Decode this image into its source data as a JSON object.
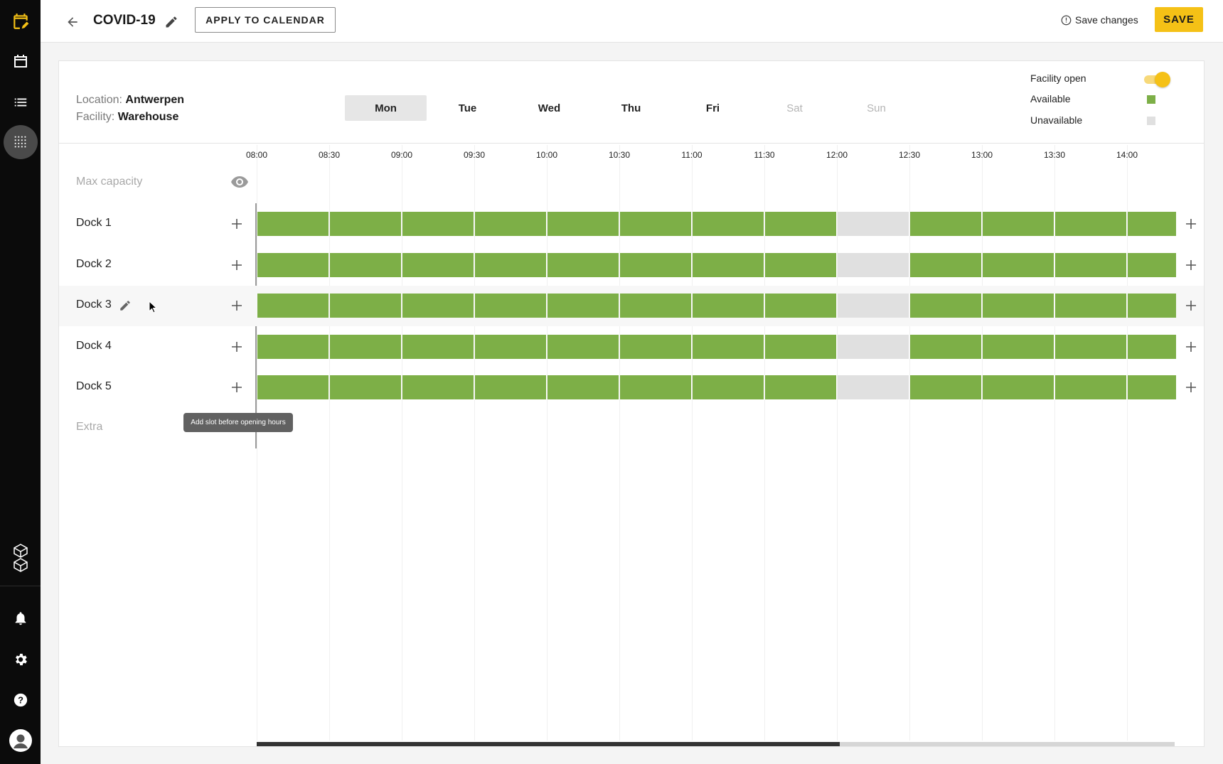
{
  "sidebar": {
    "items": [
      {
        "icon": "calendar-edit-icon",
        "color": "#f5c116"
      },
      {
        "icon": "calendar-icon"
      },
      {
        "icon": "list-icon"
      },
      {
        "icon": "grid-icon",
        "active": true
      },
      {
        "icon": "cube-stack-icon"
      },
      {
        "icon": "bell-icon"
      },
      {
        "icon": "gear-icon"
      },
      {
        "icon": "help-icon"
      },
      {
        "icon": "user-avatar-icon"
      }
    ]
  },
  "header": {
    "title": "COVID-19",
    "apply_label": "APPLY TO CALENDAR",
    "save_changes_label": "Save changes",
    "save_label": "SAVE"
  },
  "info": {
    "location_label": "Location:",
    "location_value": "Antwerpen",
    "facility_label": "Facility:",
    "facility_value": "Warehouse"
  },
  "days": [
    {
      "label": "Mon",
      "state": "active"
    },
    {
      "label": "Tue",
      "state": "normal"
    },
    {
      "label": "Wed",
      "state": "normal"
    },
    {
      "label": "Thu",
      "state": "normal"
    },
    {
      "label": "Fri",
      "state": "normal"
    },
    {
      "label": "Sat",
      "state": "disabled"
    },
    {
      "label": "Sun",
      "state": "disabled"
    }
  ],
  "legend": {
    "facility_open": "Facility open",
    "facility_open_on": true,
    "available": "Available",
    "unavailable": "Unavailable",
    "available_color": "#7daf47",
    "unavailable_color": "#e0e0e0",
    "accent_color": "#f5c116"
  },
  "times": [
    "08:00",
    "08:30",
    "09:00",
    "09:30",
    "10:00",
    "10:30",
    "11:00",
    "11:30",
    "12:00",
    "12:30",
    "13:00",
    "13:30",
    "14:00"
  ],
  "max_capacity_label": "Max capacity",
  "extra_label": "Extra",
  "tooltip": "Add slot before opening hours",
  "docks": [
    {
      "name": "Dock 1",
      "slots": [
        "available",
        "available",
        "available",
        "available",
        "available",
        "available",
        "available",
        "available",
        "unavailable",
        "available",
        "available",
        "available",
        "available"
      ]
    },
    {
      "name": "Dock 2",
      "slots": [
        "available",
        "available",
        "available",
        "available",
        "available",
        "available",
        "available",
        "available",
        "unavailable",
        "available",
        "available",
        "available",
        "available"
      ]
    },
    {
      "name": "Dock 3",
      "slots": [
        "available",
        "available",
        "available",
        "available",
        "available",
        "available",
        "available",
        "available",
        "unavailable",
        "available",
        "available",
        "available",
        "available"
      ]
    },
    {
      "name": "Dock 4",
      "slots": [
        "available",
        "available",
        "available",
        "available",
        "available",
        "available",
        "available",
        "available",
        "unavailable",
        "available",
        "available",
        "available",
        "available"
      ]
    },
    {
      "name": "Dock 5",
      "slots": [
        "available",
        "available",
        "available",
        "available",
        "available",
        "available",
        "available",
        "available",
        "unavailable",
        "available",
        "available",
        "available",
        "available"
      ]
    }
  ]
}
